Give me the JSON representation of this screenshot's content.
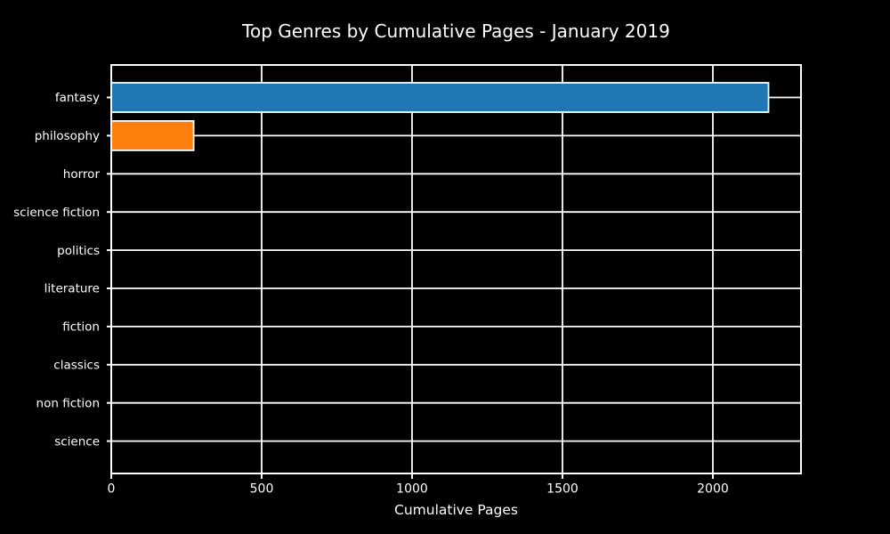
{
  "figure": {
    "background_color": "#000000",
    "text_color": "#ffffff",
    "grid_color": "#ffffff",
    "axis_color": "#ffffff"
  },
  "chart_data": {
    "type": "bar",
    "orientation": "horizontal",
    "title": "Top Genres by Cumulative Pages - January 2019",
    "xlabel": "Cumulative Pages",
    "ylabel": "",
    "categories": [
      "fantasy",
      "philosophy",
      "horror",
      "science fiction",
      "politics",
      "literature",
      "fiction",
      "classics",
      "non fiction",
      "science"
    ],
    "values": [
      2185,
      274,
      0,
      0,
      0,
      0,
      0,
      0,
      0,
      0
    ],
    "bar_colors": [
      "#1f77b4",
      "#ff7f0e",
      null,
      null,
      null,
      null,
      null,
      null,
      null,
      null
    ],
    "bar_edge_color": "#ffffff",
    "xticks": [
      0,
      500,
      1000,
      1500,
      2000
    ],
    "xlim": [
      0,
      2293
    ],
    "grid": true,
    "legend": false
  }
}
